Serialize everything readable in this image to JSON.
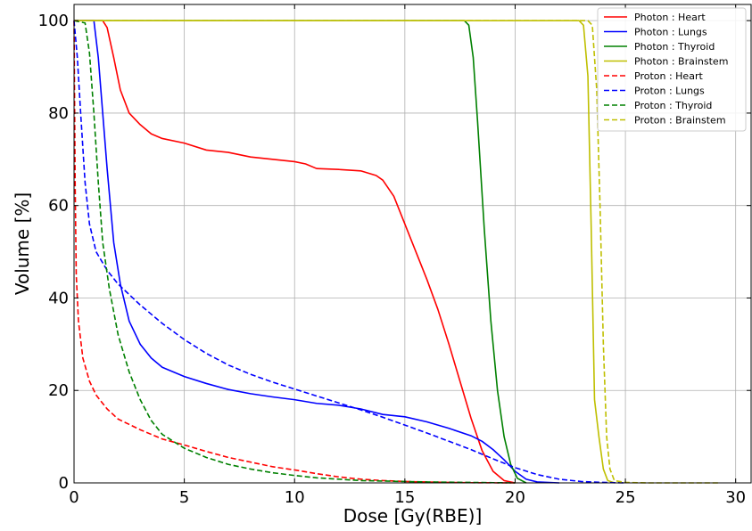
{
  "chart_data": {
    "type": "line",
    "title": "",
    "xlabel": "Dose [Gy(RBE)]",
    "ylabel": "Volume [%]",
    "xlim": [
      0,
      30.7
    ],
    "ylim": [
      0,
      103.5
    ],
    "xticks": [
      0,
      5,
      10,
      15,
      20,
      25,
      30
    ],
    "yticks": [
      0,
      20,
      40,
      60,
      80,
      100
    ],
    "xtick_labels": [
      "0",
      "5",
      "10",
      "15",
      "20",
      "25",
      "30"
    ],
    "ytick_labels": [
      "0",
      "20",
      "40",
      "60",
      "80",
      "100"
    ],
    "grid": true,
    "legend_position": "top-right",
    "series": [
      {
        "name": "Photon : Heart",
        "color": "#ff0000",
        "dash": "solid",
        "points": [
          [
            0,
            100
          ],
          [
            1.3,
            100
          ],
          [
            1.5,
            98.5
          ],
          [
            1.8,
            92
          ],
          [
            2.1,
            85
          ],
          [
            2.5,
            80
          ],
          [
            3,
            77.5
          ],
          [
            3.5,
            75.5
          ],
          [
            4,
            74.5
          ],
          [
            5,
            73.5
          ],
          [
            6,
            72
          ],
          [
            7,
            71.5
          ],
          [
            8,
            70.5
          ],
          [
            9,
            70
          ],
          [
            10,
            69.5
          ],
          [
            10.5,
            69
          ],
          [
            11,
            68
          ],
          [
            12,
            67.8
          ],
          [
            13,
            67.5
          ],
          [
            13.7,
            66.5
          ],
          [
            14,
            65.5
          ],
          [
            14.5,
            62
          ],
          [
            15,
            56
          ],
          [
            15.5,
            50
          ],
          [
            16,
            44
          ],
          [
            16.5,
            37.5
          ],
          [
            17,
            30
          ],
          [
            17.5,
            22
          ],
          [
            18,
            14
          ],
          [
            18.5,
            7
          ],
          [
            19,
            2.5
          ],
          [
            19.5,
            0.5
          ],
          [
            20,
            0
          ]
        ]
      },
      {
        "name": "Photon : Lungs",
        "color": "#0000ff",
        "dash": "solid",
        "points": [
          [
            0,
            100
          ],
          [
            0.9,
            100
          ],
          [
            1.1,
            92
          ],
          [
            1.3,
            80
          ],
          [
            1.5,
            68
          ],
          [
            1.8,
            52
          ],
          [
            2.1,
            43
          ],
          [
            2.5,
            35
          ],
          [
            3,
            30
          ],
          [
            3.5,
            27
          ],
          [
            4,
            25
          ],
          [
            5,
            23
          ],
          [
            6,
            21.5
          ],
          [
            7,
            20.2
          ],
          [
            8,
            19.3
          ],
          [
            9,
            18.6
          ],
          [
            10,
            18
          ],
          [
            11,
            17.2
          ],
          [
            12,
            16.8
          ],
          [
            13,
            16
          ],
          [
            14,
            14.8
          ],
          [
            15,
            14.3
          ],
          [
            16,
            13.2
          ],
          [
            17,
            11.8
          ],
          [
            18,
            10.2
          ],
          [
            18.5,
            9
          ],
          [
            19,
            7.2
          ],
          [
            19.5,
            5
          ],
          [
            20,
            2.5
          ],
          [
            20.5,
            0.8
          ],
          [
            21,
            0.2
          ],
          [
            22,
            0
          ]
        ]
      },
      {
        "name": "Photon : Thyroid",
        "color": "#008000",
        "dash": "solid",
        "points": [
          [
            0,
            100
          ],
          [
            17.7,
            100
          ],
          [
            17.9,
            99
          ],
          [
            18.1,
            92
          ],
          [
            18.3,
            78
          ],
          [
            18.6,
            55
          ],
          [
            18.9,
            35
          ],
          [
            19.2,
            20
          ],
          [
            19.5,
            10
          ],
          [
            19.8,
            4
          ],
          [
            20.1,
            1
          ],
          [
            20.5,
            0
          ]
        ]
      },
      {
        "name": "Photon : Brainstem",
        "color": "#bfbf00",
        "dash": "solid",
        "points": [
          [
            0,
            100
          ],
          [
            22.9,
            100
          ],
          [
            23.1,
            99
          ],
          [
            23.3,
            88
          ],
          [
            23.45,
            55
          ],
          [
            23.6,
            18
          ],
          [
            23.8,
            10
          ],
          [
            24,
            3
          ],
          [
            24.2,
            0.5
          ],
          [
            24.5,
            0
          ]
        ]
      },
      {
        "name": "Proton : Heart",
        "color": "#ff0000",
        "dash": "dashed",
        "points": [
          [
            0,
            100
          ],
          [
            0.05,
            65
          ],
          [
            0.1,
            45
          ],
          [
            0.2,
            35
          ],
          [
            0.4,
            27
          ],
          [
            0.7,
            22
          ],
          [
            1,
            19
          ],
          [
            1.5,
            16
          ],
          [
            2,
            13.8
          ],
          [
            3,
            11.5
          ],
          [
            4,
            9.5
          ],
          [
            5,
            8.2
          ],
          [
            6,
            6.8
          ],
          [
            7,
            5.5
          ],
          [
            8,
            4.5
          ],
          [
            9,
            3.5
          ],
          [
            10,
            2.8
          ],
          [
            11,
            2
          ],
          [
            12,
            1.3
          ],
          [
            13,
            0.8
          ],
          [
            14,
            0.5
          ],
          [
            15,
            0.3
          ],
          [
            16,
            0.2
          ],
          [
            17,
            0.1
          ],
          [
            18,
            0.05
          ],
          [
            20,
            0
          ]
        ]
      },
      {
        "name": "Proton : Lungs",
        "color": "#0000ff",
        "dash": "dashed",
        "points": [
          [
            0,
            100
          ],
          [
            0.15,
            92
          ],
          [
            0.3,
            80
          ],
          [
            0.5,
            65
          ],
          [
            0.7,
            56
          ],
          [
            1,
            50
          ],
          [
            1.5,
            46
          ],
          [
            2,
            43
          ],
          [
            3,
            38.5
          ],
          [
            4,
            34.5
          ],
          [
            5,
            31
          ],
          [
            6,
            28
          ],
          [
            7,
            25.5
          ],
          [
            8,
            23.5
          ],
          [
            9,
            21.8
          ],
          [
            10,
            20.3
          ],
          [
            11,
            18.8
          ],
          [
            12,
            17.3
          ],
          [
            13,
            15.8
          ],
          [
            14,
            14.2
          ],
          [
            15,
            12.5
          ],
          [
            16,
            10.8
          ],
          [
            17,
            9
          ],
          [
            18,
            7.2
          ],
          [
            19,
            5.2
          ],
          [
            20,
            3.3
          ],
          [
            21,
            1.8
          ],
          [
            22,
            0.8
          ],
          [
            23,
            0.3
          ],
          [
            24,
            0.1
          ],
          [
            25,
            0
          ]
        ]
      },
      {
        "name": "Proton : Thyroid",
        "color": "#008000",
        "dash": "dashed",
        "points": [
          [
            0,
            100
          ],
          [
            0.5,
            99.5
          ],
          [
            0.7,
            93
          ],
          [
            0.9,
            80
          ],
          [
            1.1,
            65
          ],
          [
            1.3,
            52
          ],
          [
            1.6,
            42
          ],
          [
            2,
            32
          ],
          [
            2.5,
            24
          ],
          [
            3,
            18
          ],
          [
            3.5,
            13.5
          ],
          [
            4,
            10.5
          ],
          [
            5,
            7.5
          ],
          [
            6,
            5.5
          ],
          [
            7,
            4
          ],
          [
            8,
            3
          ],
          [
            9,
            2.2
          ],
          [
            10,
            1.6
          ],
          [
            11,
            1.1
          ],
          [
            12,
            0.8
          ],
          [
            13,
            0.5
          ],
          [
            14,
            0.4
          ],
          [
            15,
            0.3
          ],
          [
            16,
            0.2
          ],
          [
            18,
            0.1
          ],
          [
            19,
            0.05
          ],
          [
            20,
            0
          ]
        ]
      },
      {
        "name": "Proton : Brainstem",
        "color": "#bfbf00",
        "dash": "dashed",
        "points": [
          [
            0,
            100
          ],
          [
            23.3,
            100
          ],
          [
            23.5,
            99
          ],
          [
            23.7,
            85
          ],
          [
            23.85,
            60
          ],
          [
            24,
            30
          ],
          [
            24.15,
            10
          ],
          [
            24.3,
            3
          ],
          [
            24.5,
            0.5
          ],
          [
            25,
            0.1
          ],
          [
            26,
            0
          ],
          [
            29.3,
            0
          ]
        ]
      }
    ]
  }
}
